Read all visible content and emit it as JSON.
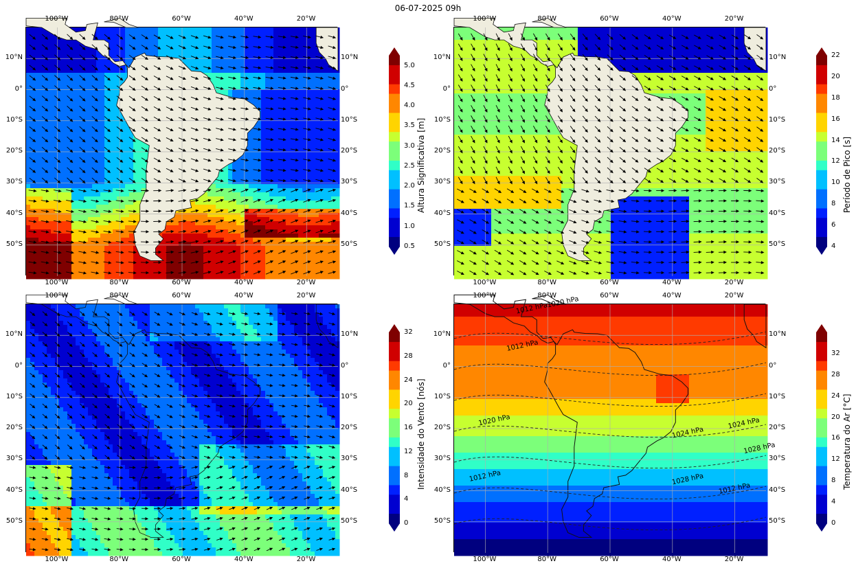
{
  "title": "06-07-2025 09h",
  "axes": {
    "lon_labels": [
      "100°W",
      "80°W",
      "60°W",
      "40°W",
      "20°W"
    ],
    "lat_labels": [
      "10°N",
      "0°",
      "10°S",
      "20°S",
      "30°S",
      "40°S",
      "50°S"
    ],
    "lon_values": [
      -100,
      -80,
      -60,
      -40,
      -20
    ],
    "lat_values": [
      10,
      0,
      -10,
      -20,
      -30,
      -40,
      -50
    ],
    "lon_range": [
      -110,
      -10
    ],
    "lat_range": [
      -60,
      20
    ]
  },
  "panels": [
    {
      "id": "hs",
      "colorbar_label": "Altura Significativa [m]",
      "colorbar_ticks": [
        "0.5",
        "1.0",
        "1.5",
        "2.0",
        "2.5",
        "3.0",
        "3.5",
        "4.0",
        "4.5",
        "5.0"
      ],
      "colorbar_range": [
        0.5,
        5.25
      ],
      "tick_values": [
        0.5,
        1.0,
        1.5,
        2.0,
        2.5,
        3.0,
        3.5,
        4.0,
        4.5,
        5.0
      ]
    },
    {
      "id": "tp",
      "colorbar_label": "Período de Pico [s]",
      "colorbar_ticks": [
        "4",
        "6",
        "8",
        "10",
        "12",
        "14",
        "16",
        "18",
        "20",
        "22"
      ],
      "colorbar_range": [
        4,
        22
      ],
      "tick_values": [
        4,
        6,
        8,
        10,
        12,
        14,
        16,
        18,
        20,
        22
      ]
    },
    {
      "id": "wind",
      "colorbar_label": "Intensidade do Vento [nós]",
      "colorbar_ticks": [
        "0",
        "4",
        "8",
        "12",
        "16",
        "20",
        "24",
        "28",
        "32"
      ],
      "colorbar_range": [
        0,
        32
      ],
      "tick_values": [
        0,
        4,
        8,
        12,
        16,
        20,
        24,
        28,
        32
      ]
    },
    {
      "id": "temp",
      "colorbar_label": "Temperatura do Ar [°C]",
      "colorbar_ticks": [
        "0",
        "4",
        "8",
        "12",
        "16",
        "20",
        "24",
        "28",
        "32"
      ],
      "colorbar_range": [
        0,
        36
      ],
      "tick_values": [
        0,
        4,
        8,
        12,
        16,
        20,
        24,
        28,
        32
      ]
    }
  ],
  "isobar_labels": [
    {
      "text": "1020 hPa",
      "lon": -80,
      "lat": 19
    },
    {
      "text": "1012 hPa",
      "lon": -90,
      "lat": 17
    },
    {
      "text": "1012 hPa",
      "lon": -93,
      "lat": 5
    },
    {
      "text": "1020 hPa",
      "lon": -102,
      "lat": -19
    },
    {
      "text": "1024 hPa",
      "lon": -40,
      "lat": -23
    },
    {
      "text": "1024 hPa",
      "lon": -22,
      "lat": -20
    },
    {
      "text": "1028 hPa",
      "lon": -17,
      "lat": -28
    },
    {
      "text": "1012 hPa",
      "lon": -105,
      "lat": -37
    },
    {
      "text": "1028 hPa",
      "lon": -40,
      "lat": -38
    },
    {
      "text": "1012 hPa",
      "lon": -25,
      "lat": -41
    }
  ],
  "colors": {
    "land": "#efedde",
    "jet": [
      "#00007f",
      "#0000d0",
      "#0020ff",
      "#0070ff",
      "#00c0ff",
      "#30ffc7",
      "#7cff7a",
      "#c7ff30",
      "#ffd400",
      "#ff8700",
      "#ff3a00",
      "#d00000",
      "#7f0000"
    ]
  }
}
